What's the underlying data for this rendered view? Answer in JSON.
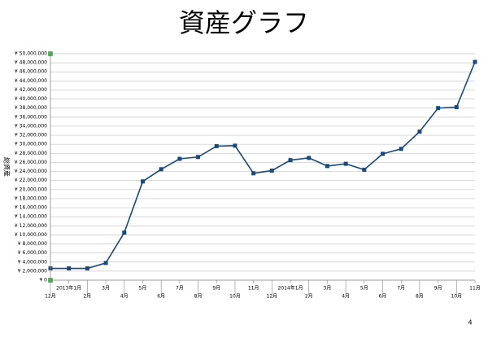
{
  "chart_data": {
    "type": "line",
    "title": "資産グラフ",
    "y_label": "総資産",
    "categories": [
      "12月",
      "2013年1月",
      "2月",
      "3月",
      "4月",
      "5月",
      "6月",
      "7月",
      "8月",
      "9月",
      "10月",
      "11月",
      "12月",
      "2014年1月",
      "2月",
      "3月",
      "4月",
      "5月",
      "6月",
      "7月",
      "8月",
      "9月",
      "10月",
      "11月"
    ],
    "values": [
      2600000,
      2600000,
      2600000,
      3800000,
      10500000,
      21800000,
      24500000,
      26800000,
      27200000,
      29600000,
      29700000,
      23600000,
      24200000,
      26500000,
      27000000,
      25200000,
      25700000,
      24400000,
      27900000,
      29000000,
      32800000,
      38000000,
      38200000,
      48200000
    ],
    "color": "#1a4a7a",
    "ylim": [
      0,
      50000000
    ],
    "yticks": [
      {
        "value": 0,
        "label": "¥ 0"
      },
      {
        "value": 2000000,
        "label": "¥ 2,000,000"
      },
      {
        "value": 4000000,
        "label": "¥ 4,000,000"
      },
      {
        "value": 6000000,
        "label": "¥ 6,000,000"
      },
      {
        "value": 8000000,
        "label": "¥ 8,000,000"
      },
      {
        "value": 10000000,
        "label": "¥ 10,000,000"
      },
      {
        "value": 12000000,
        "label": "¥ 12,000,000"
      },
      {
        "value": 14000000,
        "label": "¥ 14,000,000"
      },
      {
        "value": 16000000,
        "label": "¥ 16,000,000"
      },
      {
        "value": 18000000,
        "label": "¥ 18,000,000"
      },
      {
        "value": 20000000,
        "label": "¥ 20,000,000"
      },
      {
        "value": 22000000,
        "label": "¥ 22,000,000"
      },
      {
        "value": 24000000,
        "label": "¥ 24,000,000"
      },
      {
        "value": 26000000,
        "label": "¥ 26,000,000"
      },
      {
        "value": 28000000,
        "label": "¥ 28,000,000"
      },
      {
        "value": 30000000,
        "label": "¥ 30,000,000"
      },
      {
        "value": 32000000,
        "label": "¥ 32,000,000"
      },
      {
        "value": 34000000,
        "label": "¥ 34,000,000"
      },
      {
        "value": 36000000,
        "label": "¥ 36,000,000"
      },
      {
        "value": 38000000,
        "label": "¥ 38,000,000"
      },
      {
        "value": 40000000,
        "label": "¥ 40,000,000"
      },
      {
        "value": 42000000,
        "label": "¥ 42,000,000"
      },
      {
        "value": 44000000,
        "label": "¥ 44,000,000"
      },
      {
        "value": 46000000,
        "label": "¥ 46,000,000"
      },
      {
        "value": 48000000,
        "label": "¥ 48,000,000"
      },
      {
        "value": 50000000,
        "label": "¥ 50,000,000"
      }
    ],
    "grid": true
  },
  "page_number": "4"
}
